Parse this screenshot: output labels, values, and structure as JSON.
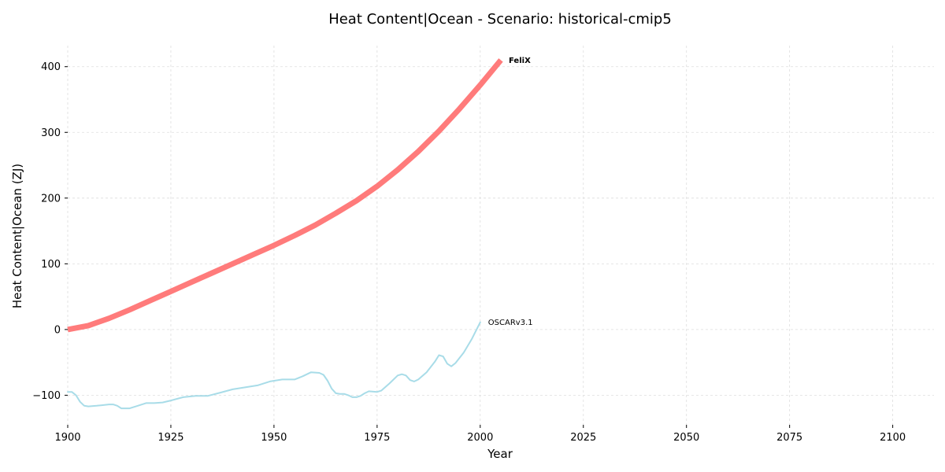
{
  "chart_data": {
    "type": "line",
    "title": "Heat Content|Ocean - Scenario: historical-cmip5",
    "xlabel": "Year",
    "ylabel": "Heat Content|Ocean (ZJ)",
    "xlim": [
      1900,
      2110
    ],
    "ylim": [
      -145,
      432
    ],
    "x_ticks": [
      1900,
      1925,
      1950,
      1975,
      2000,
      2025,
      2050,
      2075,
      2100
    ],
    "y_ticks": [
      -100,
      0,
      100,
      200,
      300,
      400
    ],
    "grid": true,
    "legend": "none (series labels at line ends)",
    "series": [
      {
        "name": "FeliX",
        "color": "#ff7b7b",
        "label_bold": true,
        "x": [
          1900,
          1905,
          1910,
          1915,
          1920,
          1925,
          1930,
          1935,
          1940,
          1945,
          1950,
          1955,
          1960,
          1965,
          1970,
          1975,
          1980,
          1985,
          1990,
          1995,
          2000,
          2005
        ],
        "y": [
          0,
          6,
          17,
          30,
          44,
          58,
          72,
          86,
          100,
          114,
          128,
          143,
          159,
          177,
          196,
          218,
          243,
          271,
          302,
          336,
          372,
          410
        ]
      },
      {
        "name": "OSCARv3.1",
        "color": "#a8dce8",
        "label_bold": false,
        "x": [
          1900,
          1901,
          1902,
          1903,
          1904,
          1905,
          1907,
          1910,
          1911,
          1912,
          1913,
          1915,
          1917,
          1919,
          1921,
          1923,
          1925,
          1928,
          1931,
          1934,
          1937,
          1940,
          1943,
          1946,
          1949,
          1952,
          1955,
          1957,
          1959,
          1961,
          1962,
          1963,
          1964,
          1965,
          1966,
          1967,
          1968,
          1969,
          1970,
          1971,
          1972,
          1973,
          1975,
          1976,
          1978,
          1980,
          1981,
          1982,
          1983,
          1984,
          1985,
          1987,
          1989,
          1990,
          1991,
          1992,
          1993,
          1994,
          1996,
          1998,
          2000
        ],
        "y": [
          -95,
          -95,
          -100,
          -110,
          -116,
          -117,
          -116,
          -114,
          -114,
          -116,
          -120,
          -120,
          -116,
          -112,
          -112,
          -111,
          -108,
          -103,
          -101,
          -101,
          -96,
          -91,
          -88,
          -85,
          -79,
          -76,
          -76,
          -71,
          -65,
          -66,
          -69,
          -78,
          -90,
          -97,
          -98,
          -98,
          -100,
          -103,
          -103,
          -101,
          -97,
          -94,
          -95,
          -93,
          -82,
          -70,
          -68,
          -70,
          -77,
          -79,
          -76,
          -65,
          -49,
          -39,
          -41,
          -52,
          -56,
          -51,
          -35,
          -14,
          11
        ]
      }
    ]
  }
}
